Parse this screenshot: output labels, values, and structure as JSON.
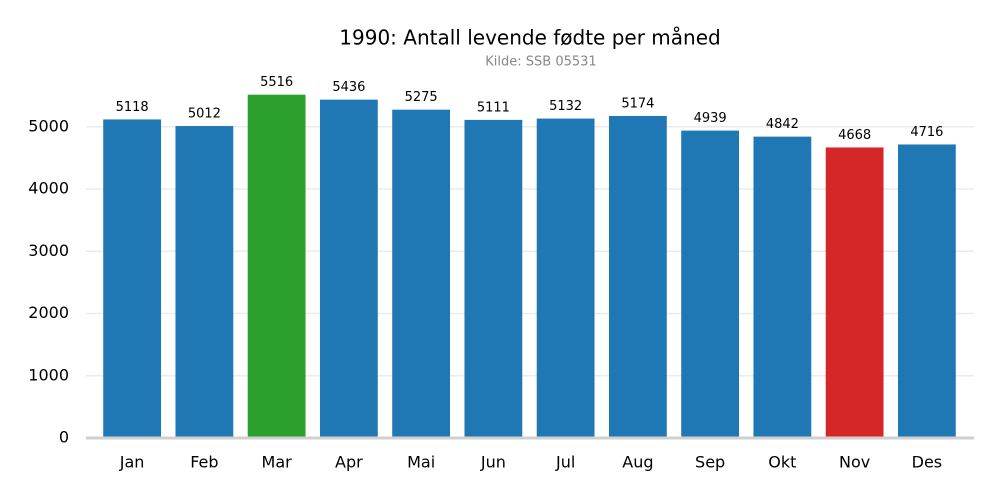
{
  "chart_data": {
    "type": "bar",
    "title": "1990: Antall levende fødte per måned",
    "subtitle": "Kilde: SSB 05531",
    "categories": [
      "Jan",
      "Feb",
      "Mar",
      "Apr",
      "Mai",
      "Jun",
      "Jul",
      "Aug",
      "Sep",
      "Okt",
      "Nov",
      "Des"
    ],
    "values": [
      5118,
      5012,
      5516,
      5436,
      5275,
      5111,
      5132,
      5174,
      4939,
      4842,
      4668,
      4716
    ],
    "colors": [
      "#1f77b4",
      "#1f77b4",
      "#2ca02c",
      "#1f77b4",
      "#1f77b4",
      "#1f77b4",
      "#1f77b4",
      "#1f77b4",
      "#1f77b4",
      "#1f77b4",
      "#d62728",
      "#1f77b4"
    ],
    "ylim": [
      0,
      5800
    ],
    "yticks": [
      0,
      1000,
      2000,
      3000,
      4000,
      5000
    ],
    "grid": true
  }
}
